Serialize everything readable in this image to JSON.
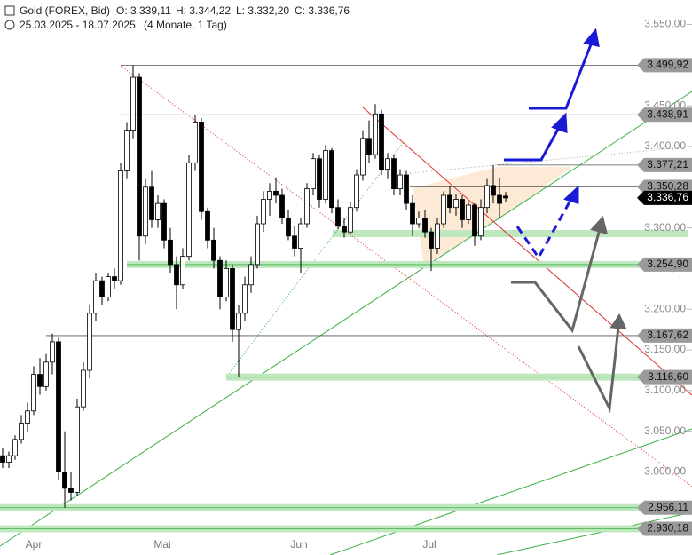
{
  "chart_data": {
    "type": "candlestick",
    "title": "Gold (FOREX, Bid)",
    "ohlc_labels": [
      "O: 3.339,11",
      "H: 3.344,22",
      "L: 3.332,20",
      "C: 3.336,76"
    ],
    "subtitle": "25.03.2025 - 18.07.2025",
    "period": "(4 Monate, 1 Tag)",
    "x_labels": [
      "Apr",
      "Mai",
      "Jun",
      "Jul"
    ],
    "open": [
      3020,
      3012,
      3020,
      3040,
      3060,
      3075,
      3120,
      3105,
      3135,
      3160,
      3000,
      2980,
      2975,
      3080,
      3125,
      3195,
      3235,
      3215,
      3240,
      3235,
      3370,
      3420,
      3485,
      3290,
      3350,
      3310,
      3330,
      3285,
      3255,
      3230,
      3265,
      3380,
      3430,
      3320,
      3285,
      3260,
      3215,
      3250,
      3175,
      3195,
      3230,
      3255,
      3305,
      3335,
      3345,
      3340,
      3312,
      3290,
      3275,
      3305,
      3348,
      3385,
      3335,
      3395,
      3325,
      3302,
      3295,
      3325,
      3365,
      3410,
      3390,
      3440,
      3372,
      3385,
      3348,
      3365,
      3330,
      3305,
      3312,
      3295,
      3275,
      3305,
      3340,
      3325,
      3335,
      3310,
      3328,
      3290,
      3325,
      3352,
      3340,
      3339.11
    ],
    "high": [
      3030,
      3025,
      3045,
      3070,
      3085,
      3130,
      3140,
      3145,
      3170,
      3165,
      3050,
      3000,
      3090,
      3135,
      3205,
      3245,
      3240,
      3245,
      3250,
      3380,
      3430,
      3499.92,
      3490,
      3360,
      3370,
      3340,
      3335,
      3300,
      3265,
      3275,
      3390,
      3438.91,
      3435,
      3325,
      3300,
      3265,
      3260,
      3255,
      3205,
      3240,
      3265,
      3315,
      3345,
      3355,
      3362,
      3348,
      3322,
      3302,
      3312,
      3355,
      3392,
      3390,
      3402,
      3398,
      3335,
      3312,
      3332,
      3372,
      3420,
      3432,
      3452,
      3445,
      3392,
      3390,
      3372,
      3370,
      3340,
      3320,
      3322,
      3300,
      3312,
      3345,
      3352,
      3342,
      3340,
      3332,
      3330,
      3335,
      3360,
      3377.21,
      3362,
      3344.22
    ],
    "low": [
      3005,
      3005,
      3015,
      3035,
      3050,
      3070,
      3095,
      3100,
      3120,
      2990,
      2956.11,
      2965,
      2970,
      3075,
      3115,
      3185,
      3205,
      3210,
      3225,
      3230,
      3360,
      3410,
      3260,
      3280,
      3300,
      3300,
      3275,
      3245,
      3200,
      3225,
      3260,
      3370,
      3310,
      3275,
      3250,
      3200,
      3210,
      3160,
      3116.6,
      3185,
      3220,
      3250,
      3295,
      3315,
      3330,
      3305,
      3285,
      3265,
      3245,
      3300,
      3340,
      3325,
      3330,
      3318,
      3298,
      3288,
      3292,
      3320,
      3358,
      3380,
      3385,
      3365,
      3360,
      3340,
      3340,
      3322,
      3290,
      3300,
      3288,
      3247,
      3268,
      3300,
      3318,
      3315,
      3300,
      3305,
      3278,
      3285,
      3318,
      3330,
      3312,
      3332.2
    ],
    "close": [
      3012,
      3020,
      3040,
      3060,
      3075,
      3120,
      3105,
      3135,
      3160,
      3000,
      2980,
      2975,
      3080,
      3125,
      3195,
      3235,
      3215,
      3240,
      3235,
      3370,
      3420,
      3485,
      3290,
      3350,
      3310,
      3330,
      3285,
      3255,
      3230,
      3265,
      3380,
      3430,
      3320,
      3285,
      3260,
      3215,
      3250,
      3175,
      3195,
      3230,
      3255,
      3305,
      3335,
      3345,
      3340,
      3312,
      3290,
      3275,
      3305,
      3348,
      3385,
      3335,
      3395,
      3325,
      3302,
      3295,
      3325,
      3365,
      3410,
      3390,
      3440,
      3372,
      3385,
      3348,
      3365,
      3330,
      3305,
      3312,
      3295,
      3275,
      3305,
      3340,
      3325,
      3335,
      3310,
      3328,
      3290,
      3325,
      3352,
      3340,
      3330,
      3336.76
    ],
    "ylim": [
      2898,
      3580
    ],
    "yticks": [
      {
        "value": 3550,
        "label": "3.550,00"
      },
      {
        "value": 3500,
        "label": "3.500,00"
      },
      {
        "value": 3450,
        "label": "3.450,00"
      },
      {
        "value": 3400,
        "label": "3.400,00"
      },
      {
        "value": 3350,
        "label": "3.350,00"
      },
      {
        "value": 3300,
        "label": "3.300,00"
      },
      {
        "value": 3250,
        "label": "3.250,00"
      },
      {
        "value": 3200,
        "label": "3.200,00"
      },
      {
        "value": 3150,
        "label": "3.150,00"
      },
      {
        "value": 3100,
        "label": "3.100,00"
      },
      {
        "value": 3050,
        "label": "3.050,00"
      },
      {
        "value": 3000,
        "label": "3.000,00"
      }
    ],
    "levels": [
      {
        "value": 3499.92,
        "label": "3.499,92",
        "band": false
      },
      {
        "value": 3438.91,
        "label": "3.438,91",
        "band": false
      },
      {
        "value": 3377.21,
        "label": "3.377,21",
        "band": false
      },
      {
        "value": 3350.28,
        "label": "3.350,28",
        "band": false
      },
      {
        "value": 3254.9,
        "label": "3.254,90",
        "band": true
      },
      {
        "value": 3167.62,
        "label": "3.167,62",
        "band": false
      },
      {
        "value": 3116.6,
        "label": "3.116,60",
        "band": true
      },
      {
        "value": 2956.11,
        "label": "2.956,11",
        "band": true
      },
      {
        "value": 2930.18,
        "label": "2.930,18",
        "band": true
      }
    ],
    "last": {
      "value": 3336.76,
      "label": "3.336,76"
    }
  }
}
